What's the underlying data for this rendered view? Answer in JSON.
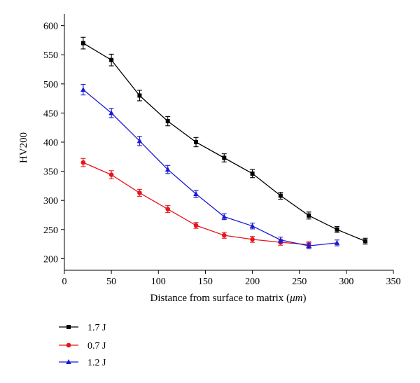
{
  "chart_data": {
    "type": "line",
    "xlabel_prefix": "Distance from surface to matrix (",
    "xlabel_unit": "μm",
    "xlabel_suffix": ")",
    "ylabel": "HV200",
    "xlim": [
      0,
      350
    ],
    "ylim": [
      180,
      620
    ],
    "xticks": [
      "0",
      "50",
      "100",
      "150",
      "200",
      "250",
      "300",
      "350"
    ],
    "yticks": [
      "200",
      "250",
      "300",
      "350",
      "400",
      "450",
      "500",
      "550",
      "600"
    ],
    "grid": false,
    "legend_position": "bottom-left",
    "series": [
      {
        "name": "1.7 J",
        "color": "#000000",
        "marker": "square",
        "x": [
          20,
          50,
          80,
          110,
          140,
          170,
          200,
          230,
          260,
          290,
          320
        ],
        "y": [
          570,
          541,
          480,
          436,
          400,
          373,
          346,
          308,
          274,
          250,
          230
        ],
        "err": [
          10,
          10,
          9,
          8,
          8,
          7,
          7,
          6,
          6,
          5,
          5
        ]
      },
      {
        "name": "0.7 J",
        "color": "#e8141c",
        "marker": "circle",
        "x": [
          20,
          50,
          80,
          110,
          140,
          170,
          200,
          230,
          260
        ],
        "y": [
          365,
          344,
          313,
          285,
          257,
          240,
          233,
          228,
          224
        ],
        "err": [
          7,
          7,
          6,
          6,
          5,
          5,
          5,
          5,
          5
        ]
      },
      {
        "name": "1.2 J",
        "color": "#1a1ad4",
        "marker": "triangle",
        "x": [
          20,
          50,
          80,
          110,
          140,
          170,
          200,
          230,
          260,
          290
        ],
        "y": [
          490,
          450,
          402,
          353,
          311,
          272,
          256,
          232,
          222,
          227
        ],
        "err": [
          9,
          8,
          8,
          7,
          6,
          5,
          5,
          5,
          5,
          5
        ]
      }
    ]
  }
}
